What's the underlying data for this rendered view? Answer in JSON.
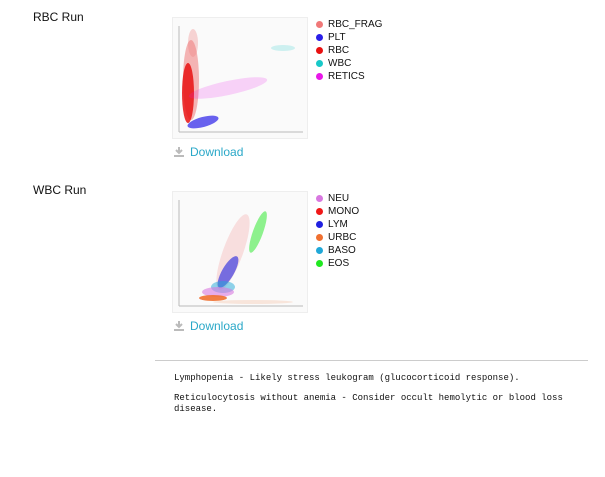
{
  "sections": [
    {
      "title": "RBC Run",
      "download": "Download",
      "legend": [
        {
          "name": "RBC_FRAG",
          "color": "#f07878"
        },
        {
          "name": "PLT",
          "color": "#2a1fe8"
        },
        {
          "name": "RBC",
          "color": "#e81010"
        },
        {
          "name": "WBC",
          "color": "#18c8c8"
        },
        {
          "name": "RETICS",
          "color": "#e818e8"
        }
      ]
    },
    {
      "title": "WBC Run",
      "download": "Download",
      "legend": [
        {
          "name": "NEU",
          "color": "#d878e0"
        },
        {
          "name": "MONO",
          "color": "#f01818"
        },
        {
          "name": "LYM",
          "color": "#2020e0"
        },
        {
          "name": "URBC",
          "color": "#f07030"
        },
        {
          "name": "BASO",
          "color": "#20a8d8"
        },
        {
          "name": "EOS",
          "color": "#20e820"
        }
      ]
    }
  ],
  "notes": [
    "Lymphopenia - Likely stress leukogram (glucocorticoid response).",
    "Reticulocytosis without anemia - Consider occult hemolytic or blood loss disease."
  ]
}
